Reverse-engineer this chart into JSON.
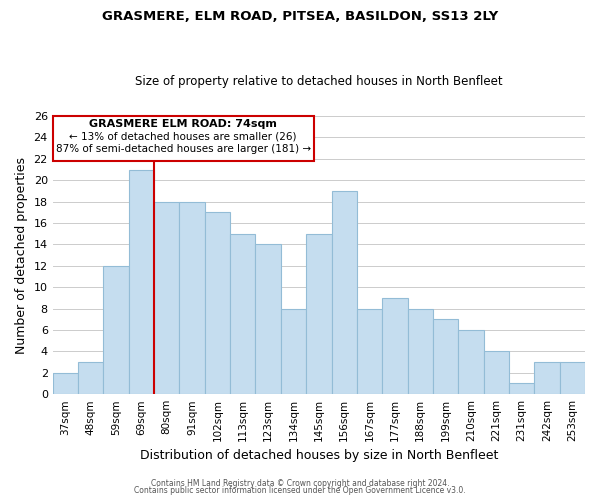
{
  "title1": "GRASMERE, ELM ROAD, PITSEA, BASILDON, SS13 2LY",
  "title2": "Size of property relative to detached houses in North Benfleet",
  "xlabel": "Distribution of detached houses by size in North Benfleet",
  "ylabel": "Number of detached properties",
  "categories": [
    "37sqm",
    "48sqm",
    "59sqm",
    "69sqm",
    "80sqm",
    "91sqm",
    "102sqm",
    "113sqm",
    "123sqm",
    "134sqm",
    "145sqm",
    "156sqm",
    "167sqm",
    "177sqm",
    "188sqm",
    "199sqm",
    "210sqm",
    "221sqm",
    "231sqm",
    "242sqm",
    "253sqm"
  ],
  "values": [
    2,
    3,
    12,
    21,
    18,
    18,
    17,
    15,
    14,
    8,
    15,
    19,
    8,
    9,
    8,
    7,
    6,
    4,
    1,
    3,
    3
  ],
  "bar_color": "#c5ddef",
  "bar_edge_color": "#93bcd6",
  "highlight_index": 3,
  "highlight_line_color": "#cc0000",
  "annotation_title": "GRASMERE ELM ROAD: 74sqm",
  "annotation_line1": "← 13% of detached houses are smaller (26)",
  "annotation_line2": "87% of semi-detached houses are larger (181) →",
  "annotation_box_edge": "#cc0000",
  "ylim": [
    0,
    26
  ],
  "yticks": [
    0,
    2,
    4,
    6,
    8,
    10,
    12,
    14,
    16,
    18,
    20,
    22,
    24,
    26
  ],
  "footer1": "Contains HM Land Registry data © Crown copyright and database right 2024.",
  "footer2": "Contains public sector information licensed under the Open Government Licence v3.0.",
  "background_color": "#ffffff",
  "grid_color": "#cccccc"
}
